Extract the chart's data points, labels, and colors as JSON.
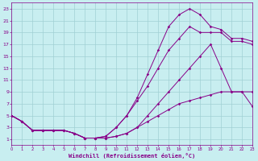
{
  "xlabel": "Windchill (Refroidissement éolien,°C)",
  "bg_color": "#c8eef0",
  "grid_color": "#a0d0d4",
  "line_color": "#880088",
  "xlim": [
    0,
    23
  ],
  "ylim": [
    0,
    24
  ],
  "xticks": [
    0,
    1,
    2,
    3,
    4,
    5,
    6,
    7,
    8,
    9,
    10,
    11,
    12,
    13,
    14,
    15,
    16,
    17,
    18,
    19,
    20,
    21,
    22,
    23
  ],
  "yticks": [
    1,
    3,
    5,
    7,
    9,
    11,
    13,
    15,
    17,
    19,
    21,
    23
  ],
  "line1_x": [
    0,
    1,
    2,
    3,
    4,
    5,
    6,
    7,
    8,
    9,
    10,
    11,
    12,
    13,
    14,
    15,
    16,
    17,
    18,
    19,
    20,
    21,
    22,
    23
  ],
  "line1_y": [
    5,
    4,
    2.5,
    2.5,
    2.5,
    2.5,
    2,
    1.2,
    1.2,
    1.2,
    1.5,
    2,
    3,
    4,
    5,
    6,
    7,
    7.5,
    8,
    8.5,
    9,
    9,
    9,
    6.5
  ],
  "line2_x": [
    0,
    1,
    2,
    3,
    4,
    5,
    6,
    7,
    8,
    9,
    10,
    11,
    12,
    13,
    14,
    15,
    16,
    17,
    18,
    19,
    20,
    21,
    22,
    23
  ],
  "line2_y": [
    5,
    4,
    2.5,
    2.5,
    2.5,
    2.5,
    2,
    1.2,
    1.2,
    1.5,
    3,
    5,
    7.5,
    10,
    13,
    16,
    18,
    20,
    19,
    19,
    19,
    17.5,
    17.5,
    17
  ],
  "line3_x": [
    0,
    1,
    2,
    3,
    4,
    5,
    6,
    7,
    8,
    9,
    10,
    11,
    12,
    13,
    14,
    15,
    16,
    17,
    18,
    19,
    20,
    21,
    22,
    23
  ],
  "line3_y": [
    5,
    4,
    2.5,
    2.5,
    2.5,
    2.5,
    2,
    1.2,
    1.2,
    1.5,
    3,
    5,
    8,
    12,
    16,
    20,
    22,
    23,
    22,
    20,
    19.5,
    18,
    18,
    17.5
  ],
  "line4_x": [
    0,
    1,
    2,
    3,
    4,
    5,
    6,
    7,
    8,
    9,
    10,
    11,
    12,
    13,
    14,
    15,
    16,
    17,
    18,
    19,
    20,
    21,
    22,
    23
  ],
  "line4_y": [
    5,
    4,
    2.5,
    2.5,
    2.5,
    2.5,
    2,
    1.2,
    1.2,
    1.2,
    1.5,
    2,
    3,
    5,
    7,
    9,
    11,
    13,
    15,
    17,
    13,
    9,
    9,
    9
  ]
}
